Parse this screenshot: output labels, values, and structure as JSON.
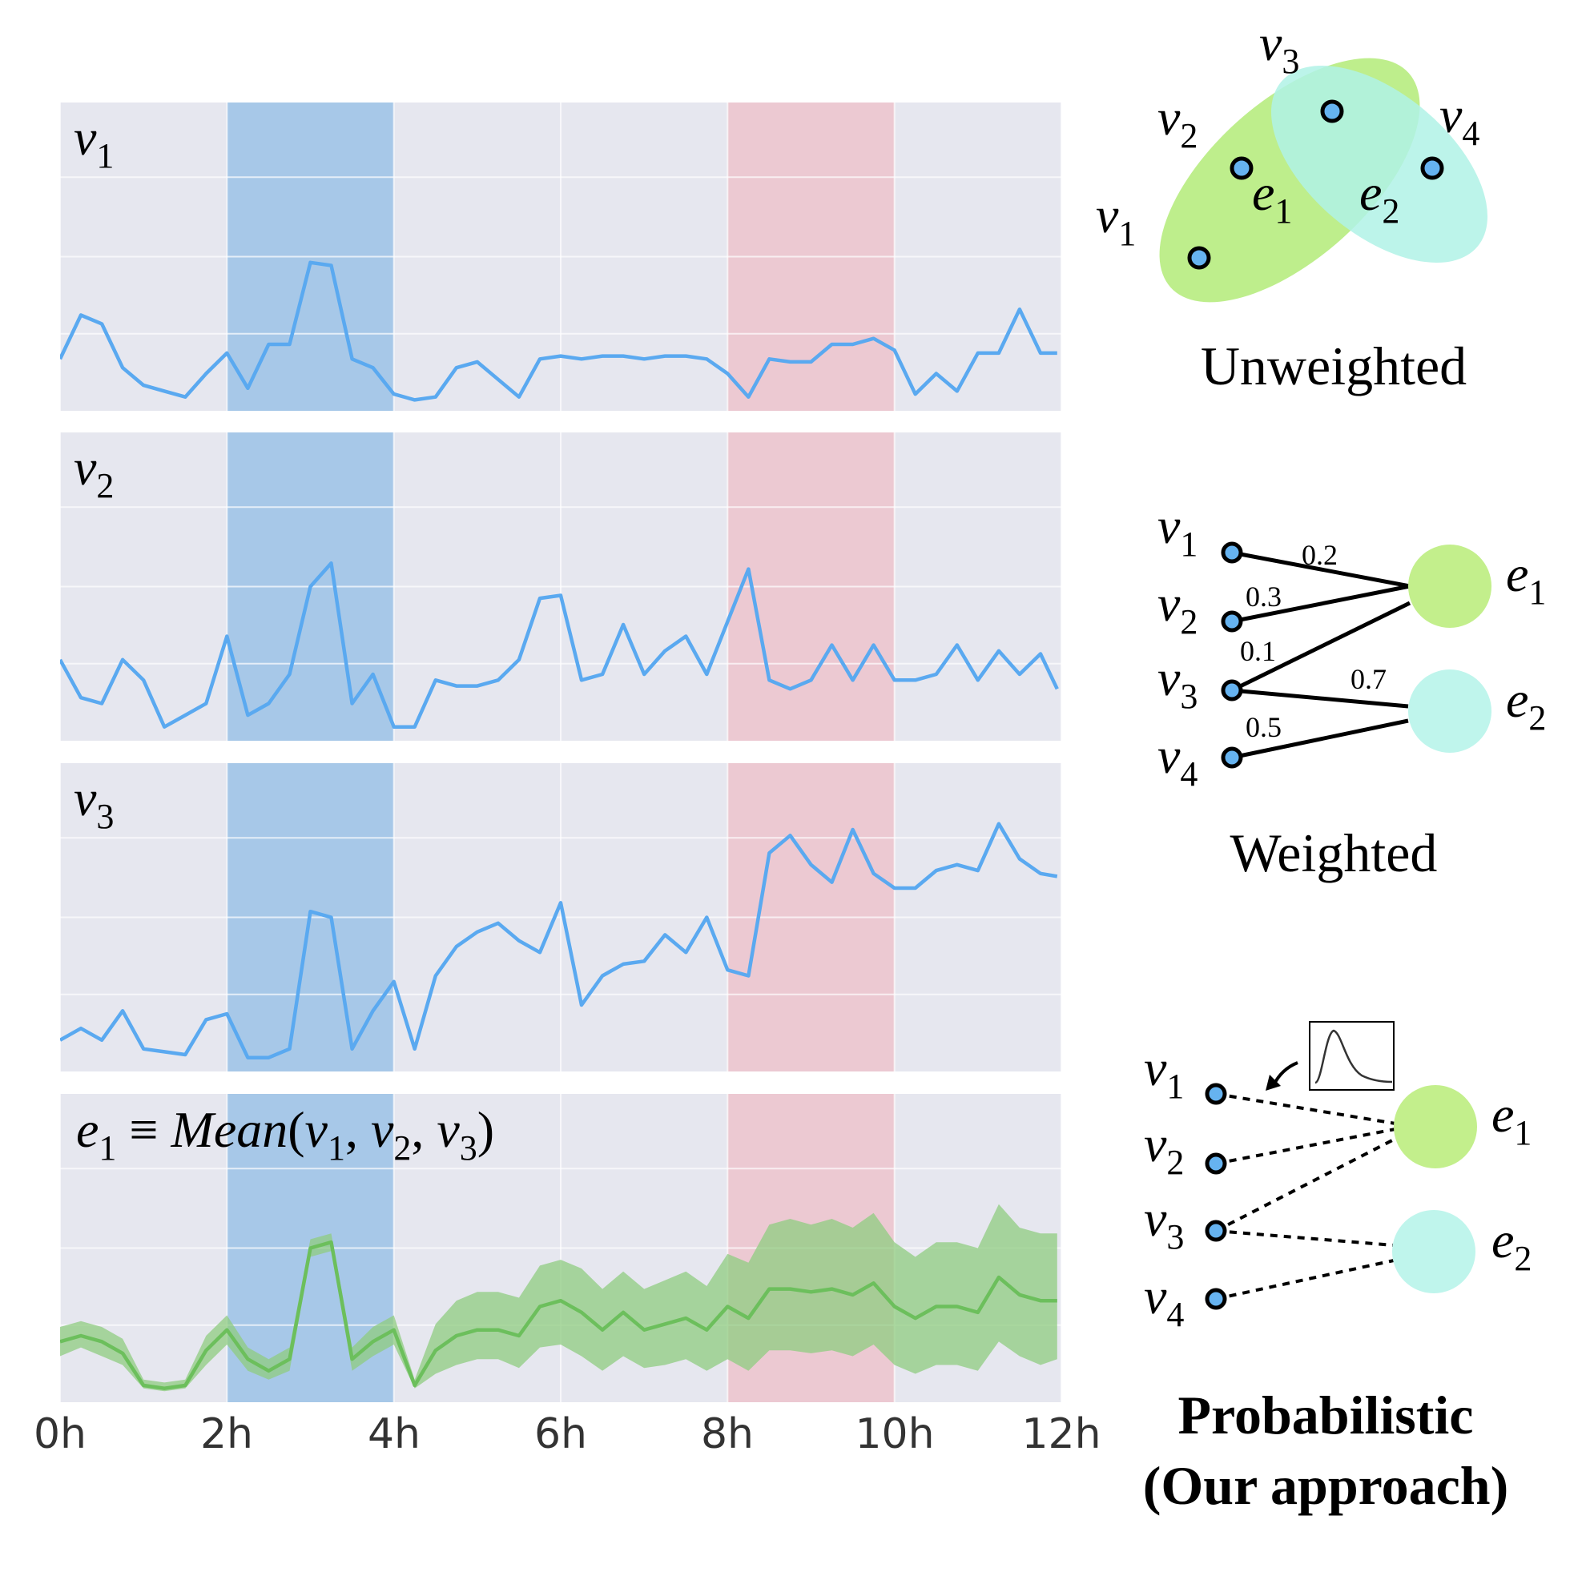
{
  "chart_data": {
    "type": "line",
    "x_unit": "hours",
    "xlim": [
      0,
      12
    ],
    "x_ticks": [
      0,
      2,
      4,
      6,
      8,
      10,
      12
    ],
    "x_tick_labels": [
      "0h",
      "2h",
      "4h",
      "6h",
      "8h",
      "10h",
      "12h"
    ],
    "ylim": [
      0,
      1
    ],
    "grid": true,
    "highlight_bands": [
      {
        "x_start": 2,
        "x_end": 4,
        "color": "#9bc2e6"
      },
      {
        "x_start": 8,
        "x_end": 10,
        "color": "#ecc3cd"
      }
    ],
    "series": [
      {
        "name": "v1",
        "color": "#5aa9f0",
        "x": [
          0,
          0.25,
          0.5,
          0.75,
          1,
          1.25,
          1.5,
          1.75,
          2,
          2.25,
          2.5,
          2.75,
          3,
          3.25,
          3.5,
          3.75,
          4,
          4.25,
          4.5,
          4.75,
          5,
          5.25,
          5.5,
          5.75,
          6,
          6.25,
          6.5,
          6.75,
          7,
          7.25,
          7.5,
          7.75,
          8,
          8.25,
          8.5,
          8.75,
          9,
          9.25,
          9.5,
          9.75,
          10,
          10.25,
          10.5,
          10.75,
          11,
          11.25,
          11.5,
          11.75,
          11.95
        ],
        "y": [
          0.15,
          0.3,
          0.27,
          0.12,
          0.06,
          0.04,
          0.02,
          0.1,
          0.17,
          0.05,
          0.2,
          0.2,
          0.48,
          0.47,
          0.15,
          0.12,
          0.03,
          0.01,
          0.02,
          0.12,
          0.14,
          0.08,
          0.02,
          0.15,
          0.16,
          0.15,
          0.16,
          0.16,
          0.15,
          0.16,
          0.16,
          0.15,
          0.1,
          0.02,
          0.15,
          0.14,
          0.14,
          0.2,
          0.2,
          0.22,
          0.18,
          0.03,
          0.1,
          0.04,
          0.17,
          0.17,
          0.32,
          0.17,
          0.17
        ]
      },
      {
        "name": "v2",
        "color": "#5aa9f0",
        "x": [
          0,
          0.25,
          0.5,
          0.75,
          1,
          1.25,
          1.5,
          1.75,
          2,
          2.25,
          2.5,
          2.75,
          3,
          3.25,
          3.5,
          3.75,
          4,
          4.25,
          4.5,
          4.75,
          5,
          5.25,
          5.5,
          5.75,
          6,
          6.25,
          6.5,
          6.75,
          7,
          7.25,
          7.5,
          7.75,
          8,
          8.25,
          8.5,
          8.75,
          9,
          9.25,
          9.5,
          9.75,
          10,
          10.25,
          10.5,
          10.75,
          11,
          11.25,
          11.5,
          11.75,
          11.95
        ],
        "y": [
          0.25,
          0.12,
          0.1,
          0.25,
          0.18,
          0.02,
          0.06,
          0.1,
          0.33,
          0.06,
          0.1,
          0.2,
          0.5,
          0.58,
          0.1,
          0.2,
          0.02,
          0.02,
          0.18,
          0.16,
          0.16,
          0.18,
          0.25,
          0.46,
          0.47,
          0.18,
          0.2,
          0.37,
          0.2,
          0.28,
          0.33,
          0.2,
          0.38,
          0.56,
          0.18,
          0.15,
          0.18,
          0.3,
          0.18,
          0.3,
          0.18,
          0.18,
          0.2,
          0.3,
          0.18,
          0.28,
          0.2,
          0.27,
          0.15
        ]
      },
      {
        "name": "v3",
        "color": "#5aa9f0",
        "x": [
          0,
          0.25,
          0.5,
          0.75,
          1,
          1.25,
          1.5,
          1.75,
          2,
          2.25,
          2.5,
          2.75,
          3,
          3.25,
          3.5,
          3.75,
          4,
          4.25,
          4.5,
          4.75,
          5,
          5.25,
          5.5,
          5.75,
          6,
          6.25,
          6.5,
          6.75,
          7,
          7.25,
          7.5,
          7.75,
          8,
          8.25,
          8.5,
          8.75,
          9,
          9.25,
          9.5,
          9.75,
          10,
          10.25,
          10.5,
          10.75,
          11,
          11.25,
          11.5,
          11.75,
          11.95
        ],
        "y": [
          0.08,
          0.12,
          0.08,
          0.18,
          0.05,
          0.04,
          0.03,
          0.15,
          0.17,
          0.02,
          0.02,
          0.05,
          0.52,
          0.5,
          0.05,
          0.18,
          0.28,
          0.05,
          0.3,
          0.4,
          0.45,
          0.48,
          0.42,
          0.38,
          0.55,
          0.2,
          0.3,
          0.34,
          0.35,
          0.44,
          0.38,
          0.5,
          0.32,
          0.3,
          0.72,
          0.78,
          0.68,
          0.62,
          0.8,
          0.65,
          0.6,
          0.6,
          0.66,
          0.68,
          0.66,
          0.82,
          0.7,
          0.65,
          0.64
        ]
      },
      {
        "name": "e1",
        "color": "#6cbf5c",
        "uncertainty_band_color": "#8fcc80",
        "x": [
          0,
          0.25,
          0.5,
          0.75,
          1,
          1.25,
          1.5,
          1.75,
          2,
          2.25,
          2.5,
          2.75,
          3,
          3.25,
          3.5,
          3.75,
          4,
          4.25,
          4.5,
          4.75,
          5,
          5.25,
          5.5,
          5.75,
          6,
          6.25,
          6.5,
          6.75,
          7,
          7.25,
          7.5,
          7.75,
          8,
          8.25,
          8.5,
          8.75,
          9,
          9.25,
          9.5,
          9.75,
          10,
          10.25,
          10.5,
          10.75,
          11,
          11.25,
          11.5,
          11.75,
          11.95
        ],
        "y": [
          0.18,
          0.2,
          0.18,
          0.14,
          0.03,
          0.02,
          0.03,
          0.15,
          0.22,
          0.12,
          0.08,
          0.12,
          0.5,
          0.52,
          0.12,
          0.18,
          0.22,
          0.03,
          0.15,
          0.2,
          0.22,
          0.22,
          0.2,
          0.3,
          0.32,
          0.28,
          0.22,
          0.28,
          0.22,
          0.24,
          0.26,
          0.22,
          0.3,
          0.26,
          0.36,
          0.36,
          0.35,
          0.36,
          0.34,
          0.38,
          0.3,
          0.26,
          0.3,
          0.3,
          0.28,
          0.4,
          0.34,
          0.32,
          0.32
        ],
        "lower": [
          0.13,
          0.16,
          0.13,
          0.1,
          0.02,
          0.01,
          0.02,
          0.1,
          0.17,
          0.08,
          0.05,
          0.08,
          0.47,
          0.49,
          0.08,
          0.13,
          0.17,
          0.02,
          0.07,
          0.1,
          0.12,
          0.12,
          0.09,
          0.16,
          0.17,
          0.13,
          0.08,
          0.13,
          0.09,
          0.1,
          0.12,
          0.08,
          0.12,
          0.08,
          0.15,
          0.15,
          0.14,
          0.15,
          0.13,
          0.17,
          0.1,
          0.07,
          0.1,
          0.1,
          0.08,
          0.18,
          0.13,
          0.1,
          0.12
        ],
        "upper": [
          0.23,
          0.25,
          0.23,
          0.19,
          0.05,
          0.04,
          0.05,
          0.2,
          0.27,
          0.16,
          0.12,
          0.16,
          0.53,
          0.55,
          0.16,
          0.23,
          0.27,
          0.05,
          0.24,
          0.32,
          0.35,
          0.35,
          0.33,
          0.44,
          0.46,
          0.43,
          0.36,
          0.42,
          0.36,
          0.39,
          0.42,
          0.37,
          0.48,
          0.45,
          0.58,
          0.6,
          0.58,
          0.6,
          0.57,
          0.62,
          0.52,
          0.47,
          0.52,
          0.52,
          0.5,
          0.65,
          0.57,
          0.55,
          0.55
        ]
      }
    ],
    "panel_labels": {
      "v1": {
        "base": "v",
        "sub": "1"
      },
      "v2": {
        "base": "v",
        "sub": "2"
      },
      "v3": {
        "base": "v",
        "sub": "3"
      },
      "e1": {
        "a": "e",
        "a_sub": "1",
        "equiv": " ≡ ",
        "fn": "Mean",
        "open": "(",
        "b_sub": "1",
        "c_sub": "2",
        "d_sub": "3",
        "var": "v",
        "comma": ", ",
        "close": ")"
      }
    }
  },
  "diagrams": {
    "unweighted": {
      "caption": "Unweighted",
      "nodes": [
        {
          "base": "v",
          "sub": "1"
        },
        {
          "base": "v",
          "sub": "2"
        },
        {
          "base": "v",
          "sub": "3"
        },
        {
          "base": "v",
          "sub": "4"
        }
      ],
      "hyperedges": [
        {
          "base": "e",
          "sub": "1",
          "color": "#b7ec7f"
        },
        {
          "base": "e",
          "sub": "2",
          "color": "#b0f2e6"
        }
      ]
    },
    "weighted": {
      "caption": "Weighted",
      "nodes": [
        {
          "base": "v",
          "sub": "1"
        },
        {
          "base": "v",
          "sub": "2"
        },
        {
          "base": "v",
          "sub": "3"
        },
        {
          "base": "v",
          "sub": "4"
        }
      ],
      "hyperedges": [
        {
          "base": "e",
          "sub": "1",
          "color": "#c3ef8c"
        },
        {
          "base": "e",
          "sub": "2",
          "color": "#bff5ec"
        }
      ],
      "weights": {
        "v1_e1": "0.2",
        "v2_e1": "0.3",
        "v3_e1": "0.1",
        "v3_e2": "0.7",
        "v4_e2": "0.5"
      }
    },
    "probabilistic": {
      "caption_line1": "Probabilistic",
      "caption_line2": "(Our approach)",
      "nodes": [
        {
          "base": "v",
          "sub": "1"
        },
        {
          "base": "v",
          "sub": "2"
        },
        {
          "base": "v",
          "sub": "3"
        },
        {
          "base": "v",
          "sub": "4"
        }
      ],
      "hyperedges": [
        {
          "base": "e",
          "sub": "1",
          "color": "#c3ef8c"
        },
        {
          "base": "e",
          "sub": "2",
          "color": "#bff5ec"
        }
      ]
    },
    "node_color": "#66b3f0"
  }
}
